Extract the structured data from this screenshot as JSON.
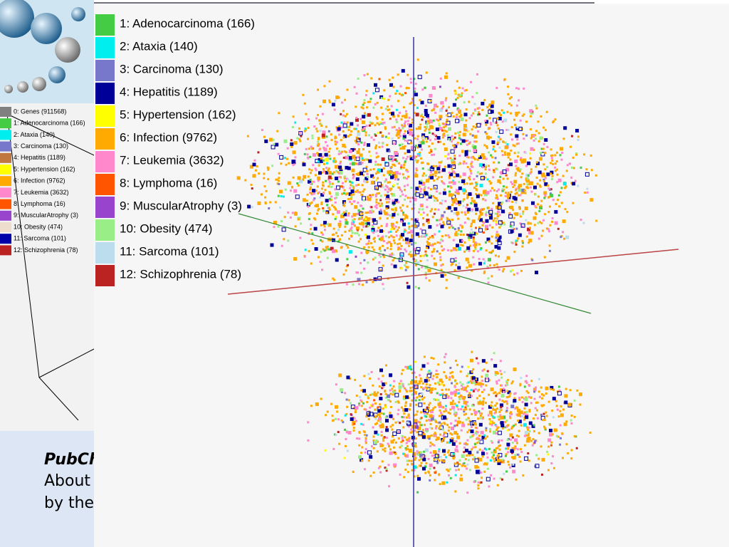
{
  "side_legend": [
    {
      "label": "0: Genes (911568)",
      "color": "#808080"
    },
    {
      "label": "1: Adenocarcinoma (166)",
      "color": "#44cc44"
    },
    {
      "label": "2: Ataxia (140)",
      "color": "#00eeee"
    },
    {
      "label": "3: Carcinoma (130)",
      "color": "#7777cc"
    },
    {
      "label": "4: Hepatitis (1189)",
      "color": "#c07840"
    },
    {
      "label": "5: Hypertension (162)",
      "color": "#ffff00"
    },
    {
      "label": "6: Infection (9762)",
      "color": "#ffaa00"
    },
    {
      "label": "7: Leukemia (3632)",
      "color": "#ff88cc"
    },
    {
      "label": "8: Lymphoma (16)",
      "color": "#ff5500"
    },
    {
      "label": "9: MuscularAtrophy (3)",
      "color": "#9944cc"
    },
    {
      "label": "10: Obesity (474)",
      "color": "#eeddcc"
    },
    {
      "label": "11: Sarcoma (101)",
      "color": "#0000aa"
    },
    {
      "label": "12: Schizophrenia (78)",
      "color": "#bb2222"
    }
  ],
  "main_legend": [
    {
      "label": "1: Adenocarcinoma (166)",
      "color": "#44cc44"
    },
    {
      "label": "2: Ataxia (140)",
      "color": "#00eeee"
    },
    {
      "label": "3: Carcinoma (130)",
      "color": "#7777cc"
    },
    {
      "label": "4: Hepatitis (1189)",
      "color": "#000099"
    },
    {
      "label": "5: Hypertension (162)",
      "color": "#ffff00"
    },
    {
      "label": "6: Infection (9762)",
      "color": "#ffaa00"
    },
    {
      "label": "7: Leukemia (3632)",
      "color": "#ff88cc"
    },
    {
      "label": "8: Lymphoma (16)",
      "color": "#ff5500"
    },
    {
      "label": "9: MuscularAtrophy (3)",
      "color": "#9944cc"
    },
    {
      "label": "10: Obesity (474)",
      "color": "#99ee88"
    },
    {
      "label": "11: Sarcoma (101)",
      "color": "#bbddee"
    },
    {
      "label": "12: Schizophrenia (78)",
      "color": "#bb2222"
    }
  ],
  "slide_text": [
    "PubChe",
    "About ",
    "by the"
  ]
}
